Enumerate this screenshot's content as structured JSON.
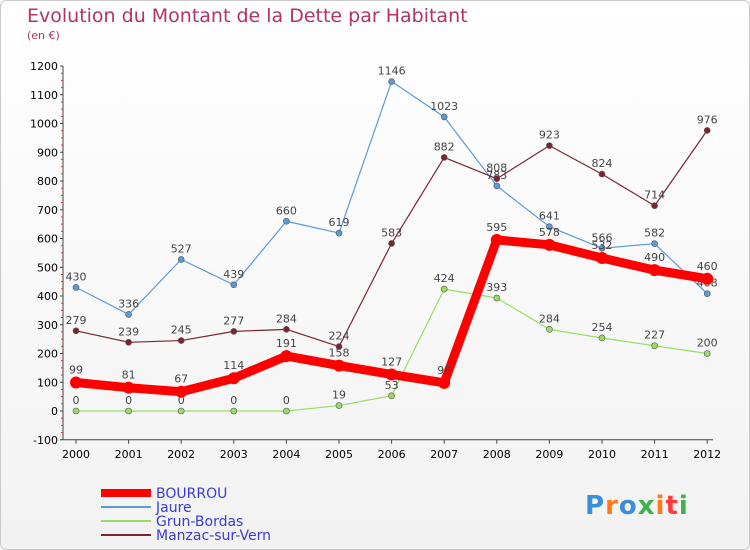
{
  "header": {
    "title": "Evolution du Montant de la Dette par Habitant",
    "unit": "(en €)"
  },
  "logo": {
    "text": "Proxiti"
  },
  "chart_data": {
    "type": "line",
    "title": "Evolution du Montant de la Dette par Habitant",
    "subtitle": "(en €)",
    "xlabel": "",
    "ylabel": "",
    "categories": [
      "2000",
      "2001",
      "2002",
      "2003",
      "2004",
      "2005",
      "2006",
      "2007",
      "2008",
      "2009",
      "2010",
      "2011",
      "2012"
    ],
    "ylim": [
      -100,
      1200
    ],
    "yticks": [
      -100,
      0,
      100,
      200,
      300,
      400,
      500,
      600,
      700,
      800,
      900,
      1000,
      1100,
      1200
    ],
    "grid": false,
    "legend_position": "bottom-left",
    "series": [
      {
        "name": "Jaure",
        "color": "#5b9bd5",
        "values": [
          430,
          336,
          527,
          439,
          660,
          619,
          1146,
          1023,
          783,
          641,
          566,
          582,
          408
        ]
      },
      {
        "name": "Manzac-sur-Vern",
        "color": "#7b2430",
        "values": [
          279,
          239,
          245,
          277,
          284,
          224,
          583,
          882,
          808,
          923,
          824,
          714,
          976
        ]
      },
      {
        "name": "Grun-Bordas",
        "color": "#99dd66",
        "values": [
          0,
          0,
          0,
          0,
          0,
          19,
          53,
          424,
          393,
          284,
          254,
          227,
          200
        ]
      },
      {
        "name": "BOURROU",
        "color": "#ff0000",
        "values": [
          99,
          81,
          67,
          114,
          191,
          158,
          127,
          98,
          595,
          578,
          532,
          490,
          460
        ]
      }
    ],
    "legend": [
      {
        "name": "BOURROU",
        "color": "#ff0000"
      },
      {
        "name": "Jaure",
        "color": "#5b9bd5"
      },
      {
        "name": "Grun-Bordas",
        "color": "#99dd66"
      },
      {
        "name": "Manzac-sur-Vern",
        "color": "#7b2430"
      }
    ]
  }
}
